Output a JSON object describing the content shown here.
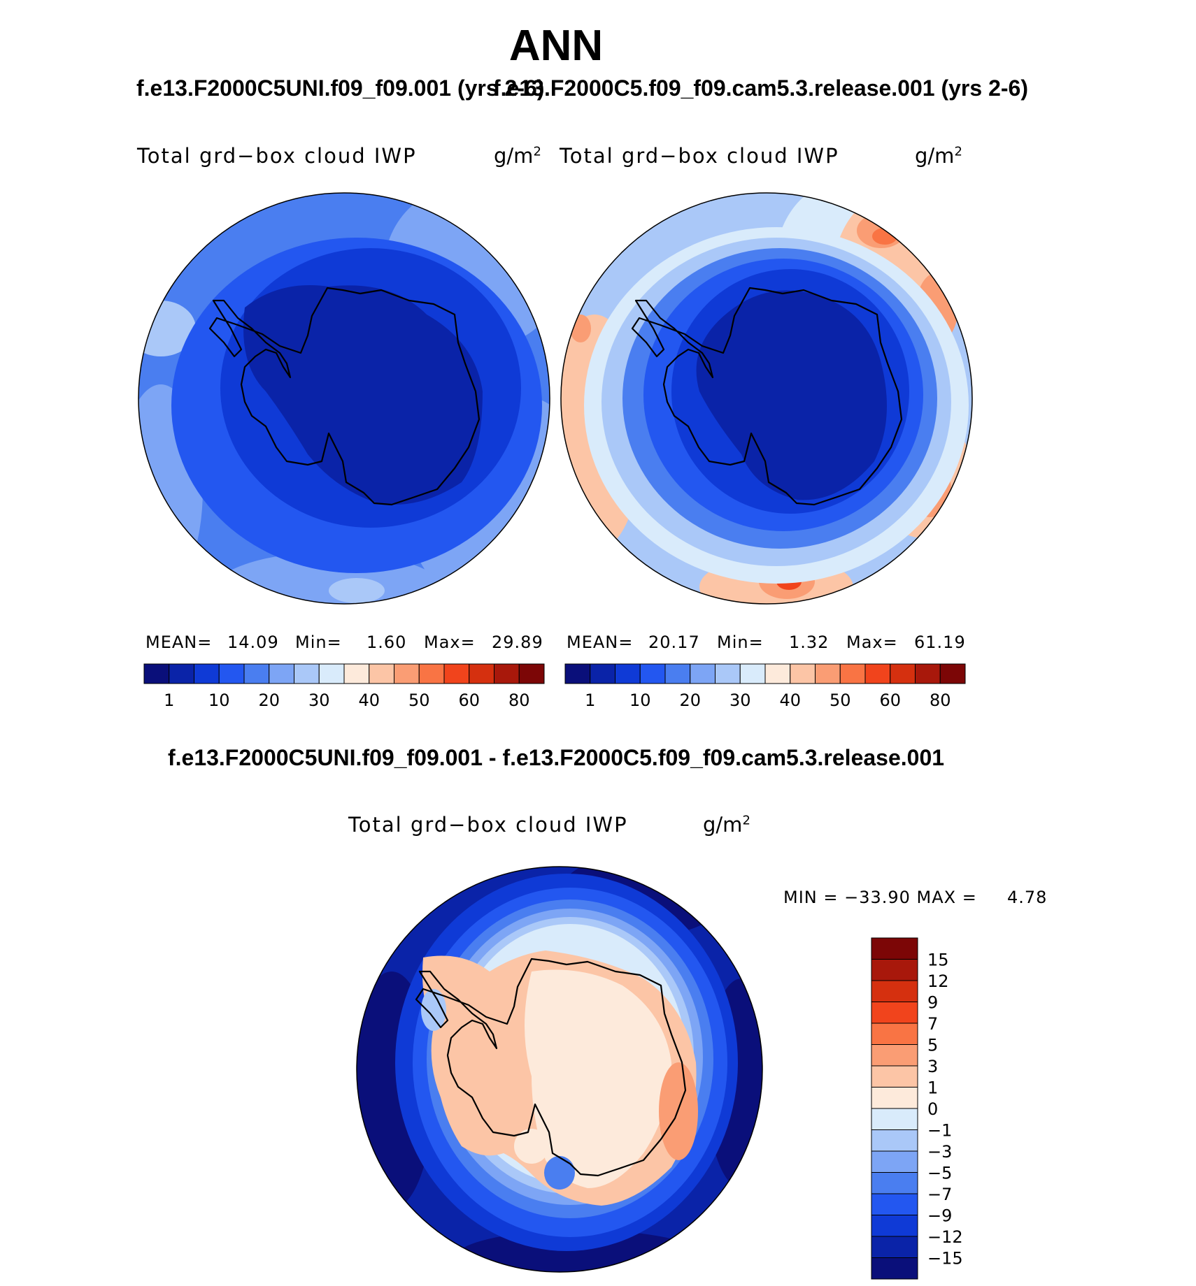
{
  "title": "ANN",
  "panels": [
    {
      "case": "f.e13.F2000C5UNI.f09_f09.001 (yrs 2-6)",
      "variable": "Total grd−box cloud IWP",
      "units": "g/m",
      "units_sup": "2",
      "mean_label": "MEAN=",
      "mean": "14.09",
      "min_label": "Min=",
      "min": "1.60",
      "max_label": "Max=",
      "max": "29.89",
      "colorbar_ticks": [
        "1",
        "10",
        "20",
        "30",
        "40",
        "50",
        "60",
        "80"
      ]
    },
    {
      "case": "f.e13.F2000C5.f09_f09.cam5.3.release.001 (yrs 2-6)",
      "variable": "Total grd−box cloud IWP",
      "units": "g/m",
      "units_sup": "2",
      "mean_label": "MEAN=",
      "mean": "20.17",
      "min_label": "Min=",
      "min": "1.32",
      "max_label": "Max=",
      "max": "61.19",
      "colorbar_ticks": [
        "1",
        "10",
        "20",
        "30",
        "40",
        "50",
        "60",
        "80"
      ]
    }
  ],
  "diff": {
    "title": "f.e13.F2000C5UNI.f09_f09.001 - f.e13.F2000C5.f09_f09.cam5.3.release.001",
    "variable": "Total grd−box cloud IWP",
    "units": "g/m",
    "units_sup": "2",
    "minmax_text": "MIN = −33.90 MAX =     4.78",
    "colorbar_ticks": [
      "15",
      "12",
      "9",
      "7",
      "5",
      "3",
      "1",
      "0",
      "−1",
      "−3",
      "−5",
      "−7",
      "−9",
      "−12",
      "−15"
    ]
  },
  "colors": {
    "abs_scale": [
      "#0a0f7a",
      "#0a23a8",
      "#0f3ad6",
      "#2357f0",
      "#4a7ef0",
      "#7da5f5",
      "#aac8f8",
      "#d9ebfb",
      "#fdeadb",
      "#fcc5a6",
      "#fa9d74",
      "#f97444",
      "#f1441c",
      "#d5300f",
      "#a8180b",
      "#7c0606"
    ],
    "diff_scale": [
      "#0a0f7a",
      "#0a23a8",
      "#0f3ad6",
      "#2357f0",
      "#4a7ef0",
      "#7da5f5",
      "#aac8f8",
      "#d9ebfb",
      "#fdeadb",
      "#fcc5a6",
      "#fa9d74",
      "#f97444",
      "#f1441c",
      "#d5300f",
      "#a8180b",
      "#7c0606"
    ]
  }
}
